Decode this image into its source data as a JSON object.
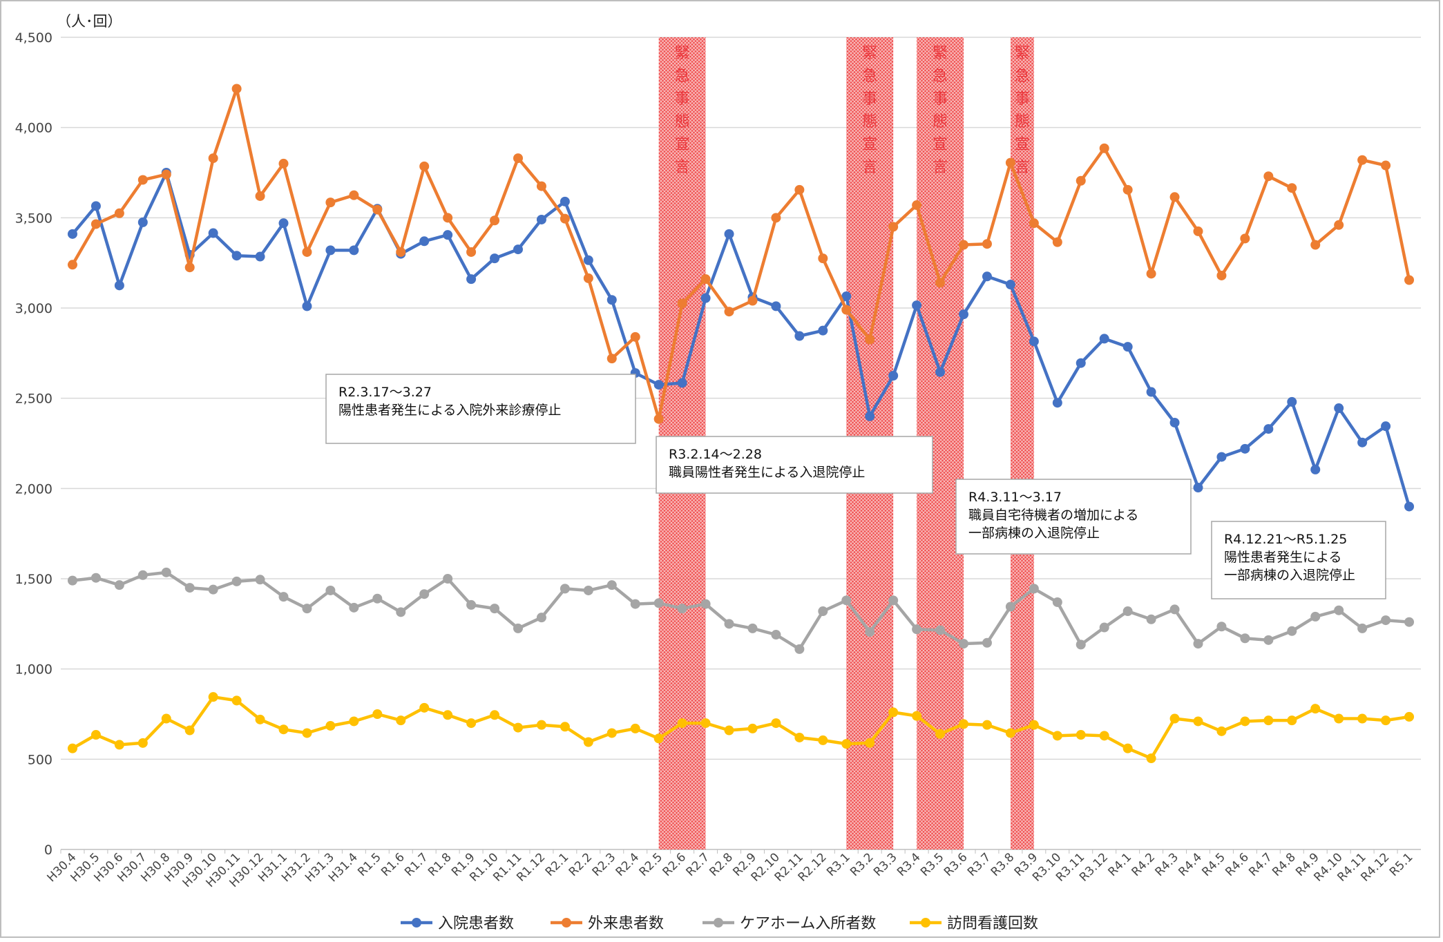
{
  "chart_data": {
    "type": "line",
    "unit_label": "（人･回）",
    "ylim": [
      0,
      4500
    ],
    "y_ticks": [
      "0",
      "500",
      "1,000",
      "1,500",
      "2,000",
      "2,500",
      "3,000",
      "3,500",
      "4,000",
      "4,500"
    ],
    "categories": [
      "H30.4",
      "H30.5",
      "H30.6",
      "H30.7",
      "H30.8",
      "H30.9",
      "H30.10",
      "H30.11",
      "H30.12",
      "H31.1",
      "H31.2",
      "H31.3",
      "H31.4",
      "R1.5",
      "R1.6",
      "R1.7",
      "R1.8",
      "R1.9",
      "R1.10",
      "R1.11",
      "R1.12",
      "R2.1",
      "R2.2",
      "R2.3",
      "R2.4",
      "R2.5",
      "R2.6",
      "R2.7",
      "R2.8",
      "R2.9",
      "R2.10",
      "R2.11",
      "R2.12",
      "R3.1",
      "R3.2",
      "R3.3",
      "R3.4",
      "R3.5",
      "R3.6",
      "R3.7",
      "R3.8",
      "R3.9",
      "R3.10",
      "R3.11",
      "R3.12",
      "R4.1",
      "R4.2",
      "R4.3",
      "R4.4",
      "R4.5",
      "R4.6",
      "R4.7",
      "R4.8",
      "R4.9",
      "R4.10",
      "R4.11",
      "R4.12",
      "R5.1"
    ],
    "grid": true,
    "legend_position": "bottom",
    "series": [
      {
        "name": "入院患者数",
        "color": "#4472c4",
        "values": [
          3410,
          3565,
          3125,
          3475,
          3750,
          3295,
          3415,
          3290,
          3285,
          3470,
          3010,
          3320,
          3320,
          3550,
          3300,
          3370,
          3405,
          3160,
          3275,
          3325,
          3490,
          3590,
          3265,
          3045,
          2640,
          2575,
          2585,
          3055,
          3410,
          3060,
          3010,
          2845,
          2875,
          3065,
          2400,
          2625,
          3015,
          2645,
          2965,
          3175,
          3130,
          2815,
          2475,
          2695,
          2830,
          2785,
          2535,
          2365,
          2005,
          2175,
          2220,
          2330,
          2480,
          2105,
          2445,
          2255,
          2345,
          1900
        ]
      },
      {
        "name": "外来患者数",
        "color": "#ed7d31",
        "values": [
          3240,
          3465,
          3525,
          3710,
          3740,
          3225,
          3830,
          4215,
          3620,
          3800,
          3310,
          3585,
          3625,
          3545,
          3310,
          3785,
          3500,
          3310,
          3485,
          3830,
          3675,
          3495,
          3165,
          2720,
          2840,
          2385,
          3025,
          3160,
          2980,
          3040,
          3500,
          3655,
          3275,
          2990,
          2825,
          3450,
          3570,
          3140,
          3350,
          3355,
          3805,
          3470,
          3365,
          3705,
          3885,
          3655,
          3190,
          3615,
          3425,
          3180,
          3385,
          3730,
          3665,
          3350,
          3460,
          3820,
          3790,
          3155
        ]
      },
      {
        "name": "ケアホーム入所者数",
        "color": "#a5a5a5",
        "values": [
          1490,
          1505,
          1465,
          1520,
          1535,
          1450,
          1440,
          1485,
          1495,
          1400,
          1335,
          1435,
          1340,
          1390,
          1315,
          1415,
          1500,
          1355,
          1335,
          1225,
          1285,
          1445,
          1435,
          1465,
          1360,
          1365,
          1335,
          1360,
          1250,
          1225,
          1190,
          1110,
          1320,
          1380,
          1205,
          1380,
          1220,
          1215,
          1140,
          1145,
          1345,
          1445,
          1370,
          1135,
          1230,
          1320,
          1275,
          1330,
          1140,
          1235,
          1170,
          1160,
          1210,
          1290,
          1325,
          1225,
          1270,
          1260
        ]
      },
      {
        "name": "訪問看護回数",
        "color": "#ffc000",
        "values": [
          560,
          635,
          580,
          590,
          725,
          660,
          845,
          825,
          720,
          665,
          645,
          685,
          710,
          750,
          715,
          785,
          745,
          700,
          745,
          675,
          690,
          680,
          595,
          645,
          670,
          615,
          700,
          700,
          660,
          670,
          700,
          620,
          605,
          585,
          590,
          760,
          740,
          640,
          695,
          690,
          645,
          690,
          630,
          635,
          630,
          560,
          505,
          725,
          710,
          655,
          710,
          715,
          715,
          780,
          725,
          725,
          715,
          735
        ]
      }
    ],
    "shaded_periods": [
      {
        "from": "R2.5",
        "to": "R2.7",
        "label": "緊急事態宣言"
      },
      {
        "from": "R3.1",
        "to": "R3.3",
        "label": "緊急事態宣言"
      },
      {
        "from": "R3.4",
        "to": "R3.6",
        "label": "緊急事態宣言"
      },
      {
        "from": "R3.8",
        "to": "R3.9",
        "label": "緊急事態宣言"
      }
    ],
    "annotations": [
      {
        "lines": [
          "R2.3.17～3.27",
          "陽性患者発生による入院外来診療停止"
        ]
      },
      {
        "lines": [
          "R3.2.14～2.28",
          "職員陽性者発生による入退院停止"
        ]
      },
      {
        "lines": [
          "R4.3.11～3.17",
          "職員自宅待機者の増加による",
          "一部病棟の入退院停止"
        ]
      },
      {
        "lines": [
          "R4.12.21～R5.1.25",
          "陽性患者発生による",
          "一部病棟の入退院停止"
        ]
      }
    ]
  }
}
